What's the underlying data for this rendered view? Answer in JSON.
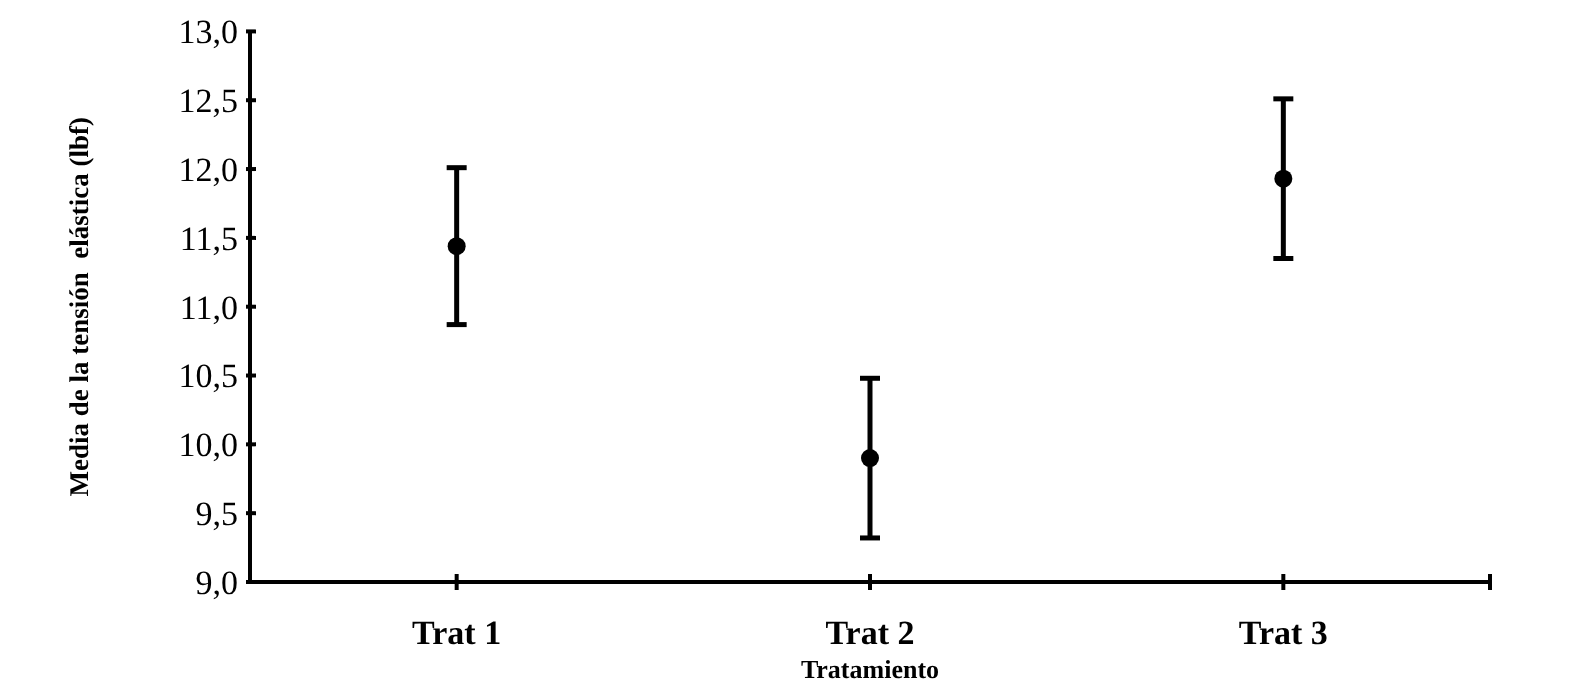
{
  "chart_data": {
    "type": "scatter",
    "xlabel": "Tratamiento",
    "ylabel": "Media de la tensión  elástica (lbf)",
    "categories": [
      "Trat 1",
      "Trat 2",
      "Trat 3"
    ],
    "values": [
      11.44,
      9.9,
      11.93
    ],
    "errors": [
      0.57,
      0.58,
      0.58
    ],
    "color": "#000000",
    "marker": "circle",
    "ylim": [
      9.0,
      13.0
    ],
    "yticks": [
      {
        "value": 9.0,
        "label": "9,0"
      },
      {
        "value": 9.5,
        "label": "9,5"
      },
      {
        "value": 10.0,
        "label": "10,0"
      },
      {
        "value": 10.5,
        "label": "10,5"
      },
      {
        "value": 11.0,
        "label": "11,0"
      },
      {
        "value": 11.5,
        "label": "11,5"
      },
      {
        "value": 12.0,
        "label": "12,0"
      },
      {
        "value": 12.5,
        "label": "12,5"
      },
      {
        "value": 13.0,
        "label": "13,0"
      }
    ],
    "grid": false
  }
}
